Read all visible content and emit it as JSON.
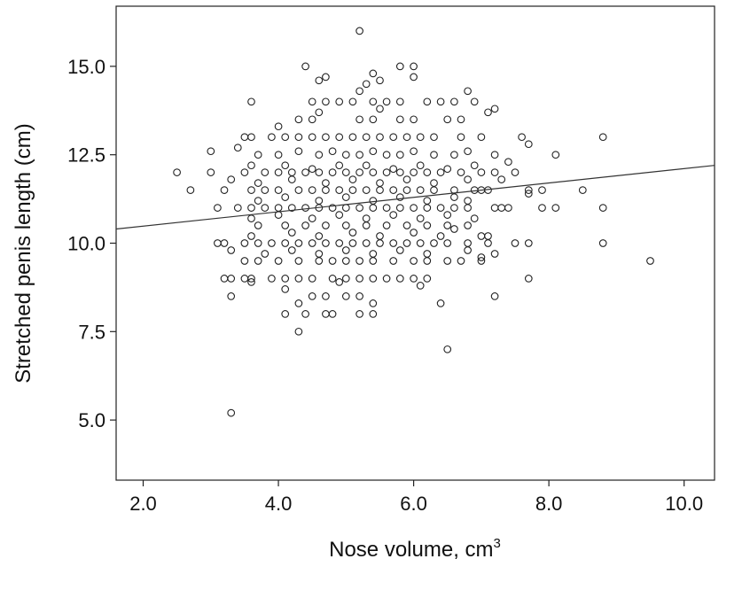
{
  "chart_data": {
    "type": "scatter",
    "title": "",
    "xlabel": "Nose volume, cm",
    "xlabel_superscript": "3",
    "ylabel": "Stretched penis length (cm)",
    "xlim": [
      1.6,
      10.45
    ],
    "ylim": [
      3.3,
      16.7
    ],
    "x_ticks": [
      2.0,
      4.0,
      6.0,
      8.0,
      10.0
    ],
    "x_tick_labels": [
      "2.0",
      "4.0",
      "6.0",
      "8.0",
      "10.0"
    ],
    "y_ticks": [
      5.0,
      7.5,
      10.0,
      12.5,
      15.0
    ],
    "y_tick_labels": [
      "5.0",
      "7.5",
      "10.0",
      "12.5",
      "15.0"
    ],
    "grid": false,
    "legend": "none",
    "fit_line": {
      "x": [
        1.6,
        10.45
      ],
      "y": [
        10.4,
        12.2
      ]
    },
    "points": [
      [
        5.2,
        16.0
      ],
      [
        4.4,
        15.0
      ],
      [
        5.8,
        15.0
      ],
      [
        6.0,
        15.0
      ],
      [
        4.7,
        14.7
      ],
      [
        5.4,
        14.8
      ],
      [
        6.0,
        14.7
      ],
      [
        4.6,
        14.6
      ],
      [
        5.3,
        14.5
      ],
      [
        5.5,
        14.6
      ],
      [
        5.2,
        14.3
      ],
      [
        3.6,
        14.0
      ],
      [
        4.5,
        14.0
      ],
      [
        4.7,
        14.0
      ],
      [
        4.9,
        14.0
      ],
      [
        5.1,
        14.0
      ],
      [
        5.4,
        14.0
      ],
      [
        5.6,
        14.0
      ],
      [
        5.8,
        14.0
      ],
      [
        6.2,
        14.0
      ],
      [
        6.4,
        14.0
      ],
      [
        6.6,
        14.0
      ],
      [
        6.8,
        14.3
      ],
      [
        6.9,
        14.0
      ],
      [
        4.6,
        13.7
      ],
      [
        5.5,
        13.8
      ],
      [
        7.1,
        13.7
      ],
      [
        7.2,
        13.8
      ],
      [
        4.0,
        13.3
      ],
      [
        4.3,
        13.5
      ],
      [
        4.5,
        13.5
      ],
      [
        5.2,
        13.5
      ],
      [
        5.4,
        13.5
      ],
      [
        5.8,
        13.5
      ],
      [
        6.0,
        13.5
      ],
      [
        6.5,
        13.5
      ],
      [
        6.7,
        13.5
      ],
      [
        3.5,
        13.0
      ],
      [
        3.6,
        13.0
      ],
      [
        3.9,
        13.0
      ],
      [
        4.1,
        13.0
      ],
      [
        4.3,
        13.0
      ],
      [
        4.5,
        13.0
      ],
      [
        4.7,
        13.0
      ],
      [
        4.9,
        13.0
      ],
      [
        5.1,
        13.0
      ],
      [
        5.3,
        13.0
      ],
      [
        5.5,
        13.0
      ],
      [
        5.7,
        13.0
      ],
      [
        5.9,
        13.0
      ],
      [
        6.1,
        13.0
      ],
      [
        6.3,
        13.0
      ],
      [
        6.7,
        13.0
      ],
      [
        7.0,
        13.0
      ],
      [
        7.6,
        13.0
      ],
      [
        7.7,
        12.8
      ],
      [
        8.8,
        13.0
      ],
      [
        3.0,
        12.6
      ],
      [
        3.4,
        12.7
      ],
      [
        3.7,
        12.5
      ],
      [
        4.0,
        12.5
      ],
      [
        4.3,
        12.6
      ],
      [
        4.6,
        12.5
      ],
      [
        4.8,
        12.6
      ],
      [
        5.0,
        12.5
      ],
      [
        5.2,
        12.5
      ],
      [
        5.4,
        12.6
      ],
      [
        5.6,
        12.5
      ],
      [
        5.8,
        12.5
      ],
      [
        6.0,
        12.6
      ],
      [
        6.3,
        12.5
      ],
      [
        6.6,
        12.5
      ],
      [
        6.8,
        12.6
      ],
      [
        7.2,
        12.5
      ],
      [
        8.1,
        12.5
      ],
      [
        3.6,
        12.2
      ],
      [
        4.1,
        12.2
      ],
      [
        4.5,
        12.1
      ],
      [
        4.9,
        12.2
      ],
      [
        5.3,
        12.2
      ],
      [
        5.7,
        12.1
      ],
      [
        6.1,
        12.2
      ],
      [
        6.5,
        12.1
      ],
      [
        6.9,
        12.2
      ],
      [
        7.4,
        12.3
      ],
      [
        7.2,
        12.0
      ],
      [
        2.5,
        12.0
      ],
      [
        3.0,
        12.0
      ],
      [
        3.5,
        12.0
      ],
      [
        3.8,
        12.0
      ],
      [
        4.0,
        12.0
      ],
      [
        4.2,
        12.0
      ],
      [
        4.4,
        12.0
      ],
      [
        4.6,
        12.0
      ],
      [
        4.8,
        12.0
      ],
      [
        5.0,
        12.0
      ],
      [
        5.2,
        12.0
      ],
      [
        5.4,
        12.0
      ],
      [
        5.6,
        12.0
      ],
      [
        5.8,
        12.0
      ],
      [
        6.0,
        12.0
      ],
      [
        6.2,
        12.0
      ],
      [
        6.4,
        12.0
      ],
      [
        6.7,
        12.0
      ],
      [
        7.0,
        12.0
      ],
      [
        7.5,
        12.0
      ],
      [
        3.3,
        11.8
      ],
      [
        3.7,
        11.7
      ],
      [
        4.2,
        11.8
      ],
      [
        4.7,
        11.7
      ],
      [
        5.1,
        11.8
      ],
      [
        5.5,
        11.7
      ],
      [
        5.9,
        11.8
      ],
      [
        6.3,
        11.7
      ],
      [
        6.8,
        11.8
      ],
      [
        7.3,
        11.8
      ],
      [
        2.7,
        11.5
      ],
      [
        3.2,
        11.5
      ],
      [
        3.6,
        11.5
      ],
      [
        3.8,
        11.5
      ],
      [
        4.0,
        11.5
      ],
      [
        4.3,
        11.5
      ],
      [
        4.5,
        11.5
      ],
      [
        4.7,
        11.5
      ],
      [
        4.9,
        11.5
      ],
      [
        5.1,
        11.5
      ],
      [
        5.3,
        11.5
      ],
      [
        5.5,
        11.5
      ],
      [
        5.7,
        11.5
      ],
      [
        5.9,
        11.5
      ],
      [
        6.1,
        11.5
      ],
      [
        6.3,
        11.5
      ],
      [
        6.6,
        11.5
      ],
      [
        6.9,
        11.5
      ],
      [
        7.1,
        11.5
      ],
      [
        7.7,
        11.5
      ],
      [
        7.9,
        11.5
      ],
      [
        8.5,
        11.5
      ],
      [
        7.7,
        11.4
      ],
      [
        7.0,
        11.5
      ],
      [
        3.7,
        11.2
      ],
      [
        4.1,
        11.3
      ],
      [
        4.6,
        11.2
      ],
      [
        5.0,
        11.3
      ],
      [
        5.4,
        11.2
      ],
      [
        5.8,
        11.3
      ],
      [
        6.2,
        11.2
      ],
      [
        6.6,
        11.3
      ],
      [
        6.8,
        11.2
      ],
      [
        3.1,
        11.0
      ],
      [
        3.4,
        11.0
      ],
      [
        3.6,
        11.0
      ],
      [
        3.8,
        11.0
      ],
      [
        4.0,
        11.0
      ],
      [
        4.2,
        11.0
      ],
      [
        4.4,
        11.0
      ],
      [
        4.6,
        11.0
      ],
      [
        4.8,
        11.0
      ],
      [
        5.0,
        11.0
      ],
      [
        5.2,
        11.0
      ],
      [
        5.4,
        11.0
      ],
      [
        5.6,
        11.0
      ],
      [
        5.8,
        11.0
      ],
      [
        6.0,
        11.0
      ],
      [
        6.2,
        11.0
      ],
      [
        6.4,
        11.0
      ],
      [
        6.6,
        11.0
      ],
      [
        6.8,
        11.0
      ],
      [
        7.2,
        11.0
      ],
      [
        7.3,
        11.0
      ],
      [
        7.4,
        11.0
      ],
      [
        7.9,
        11.0
      ],
      [
        8.1,
        11.0
      ],
      [
        8.8,
        11.0
      ],
      [
        3.6,
        10.7
      ],
      [
        4.0,
        10.8
      ],
      [
        4.5,
        10.7
      ],
      [
        4.9,
        10.8
      ],
      [
        5.3,
        10.7
      ],
      [
        5.7,
        10.8
      ],
      [
        6.1,
        10.7
      ],
      [
        6.5,
        10.8
      ],
      [
        6.9,
        10.7
      ],
      [
        3.7,
        10.5
      ],
      [
        4.1,
        10.5
      ],
      [
        4.4,
        10.5
      ],
      [
        4.7,
        10.5
      ],
      [
        5.0,
        10.5
      ],
      [
        5.3,
        10.5
      ],
      [
        5.6,
        10.5
      ],
      [
        5.9,
        10.5
      ],
      [
        6.2,
        10.5
      ],
      [
        6.5,
        10.5
      ],
      [
        6.8,
        10.5
      ],
      [
        6.6,
        10.4
      ],
      [
        3.6,
        10.2
      ],
      [
        4.2,
        10.3
      ],
      [
        4.6,
        10.2
      ],
      [
        5.1,
        10.3
      ],
      [
        5.5,
        10.2
      ],
      [
        6.0,
        10.3
      ],
      [
        6.4,
        10.2
      ],
      [
        7.0,
        10.2
      ],
      [
        7.1,
        10.2
      ],
      [
        3.1,
        10.0
      ],
      [
        3.2,
        10.0
      ],
      [
        3.5,
        10.0
      ],
      [
        3.7,
        10.0
      ],
      [
        3.9,
        10.0
      ],
      [
        4.1,
        10.0
      ],
      [
        4.3,
        10.0
      ],
      [
        4.5,
        10.0
      ],
      [
        4.7,
        10.0
      ],
      [
        4.9,
        10.0
      ],
      [
        5.1,
        10.0
      ],
      [
        5.3,
        10.0
      ],
      [
        5.5,
        10.0
      ],
      [
        5.7,
        10.0
      ],
      [
        5.9,
        10.0
      ],
      [
        6.1,
        10.0
      ],
      [
        6.3,
        10.0
      ],
      [
        6.5,
        10.0
      ],
      [
        6.8,
        10.0
      ],
      [
        7.1,
        10.0
      ],
      [
        7.5,
        10.0
      ],
      [
        7.7,
        10.0
      ],
      [
        8.8,
        10.0
      ],
      [
        3.3,
        9.8
      ],
      [
        3.8,
        9.7
      ],
      [
        4.2,
        9.8
      ],
      [
        4.6,
        9.7
      ],
      [
        5.0,
        9.8
      ],
      [
        5.4,
        9.7
      ],
      [
        5.8,
        9.8
      ],
      [
        6.2,
        9.7
      ],
      [
        6.8,
        9.8
      ],
      [
        7.2,
        9.7
      ],
      [
        3.5,
        9.5
      ],
      [
        3.7,
        9.5
      ],
      [
        4.0,
        9.5
      ],
      [
        4.3,
        9.5
      ],
      [
        4.6,
        9.5
      ],
      [
        4.8,
        9.5
      ],
      [
        5.0,
        9.5
      ],
      [
        5.2,
        9.5
      ],
      [
        5.4,
        9.5
      ],
      [
        5.7,
        9.5
      ],
      [
        6.0,
        9.5
      ],
      [
        6.2,
        9.5
      ],
      [
        6.5,
        9.5
      ],
      [
        6.7,
        9.5
      ],
      [
        7.0,
        9.5
      ],
      [
        7.0,
        9.6
      ],
      [
        9.5,
        9.5
      ],
      [
        3.2,
        9.0
      ],
      [
        3.3,
        9.0
      ],
      [
        3.5,
        9.0
      ],
      [
        3.6,
        9.0
      ],
      [
        3.9,
        9.0
      ],
      [
        4.1,
        9.0
      ],
      [
        4.3,
        9.0
      ],
      [
        4.5,
        9.0
      ],
      [
        4.8,
        9.0
      ],
      [
        5.0,
        9.0
      ],
      [
        5.2,
        9.0
      ],
      [
        5.4,
        9.0
      ],
      [
        5.6,
        9.0
      ],
      [
        5.8,
        9.0
      ],
      [
        6.0,
        9.0
      ],
      [
        6.2,
        9.0
      ],
      [
        7.7,
        9.0
      ],
      [
        3.6,
        8.9
      ],
      [
        4.9,
        8.9
      ],
      [
        6.1,
        8.8
      ],
      [
        3.3,
        8.5
      ],
      [
        4.1,
        8.7
      ],
      [
        4.5,
        8.5
      ],
      [
        4.7,
        8.5
      ],
      [
        5.0,
        8.5
      ],
      [
        5.2,
        8.5
      ],
      [
        5.4,
        8.3
      ],
      [
        6.4,
        8.3
      ],
      [
        7.2,
        8.5
      ],
      [
        4.3,
        8.3
      ],
      [
        4.1,
        8.0
      ],
      [
        4.4,
        8.0
      ],
      [
        4.7,
        8.0
      ],
      [
        4.8,
        8.0
      ],
      [
        5.2,
        8.0
      ],
      [
        5.4,
        8.0
      ],
      [
        4.3,
        7.5
      ],
      [
        6.5,
        7.0
      ],
      [
        3.3,
        5.2
      ]
    ]
  }
}
